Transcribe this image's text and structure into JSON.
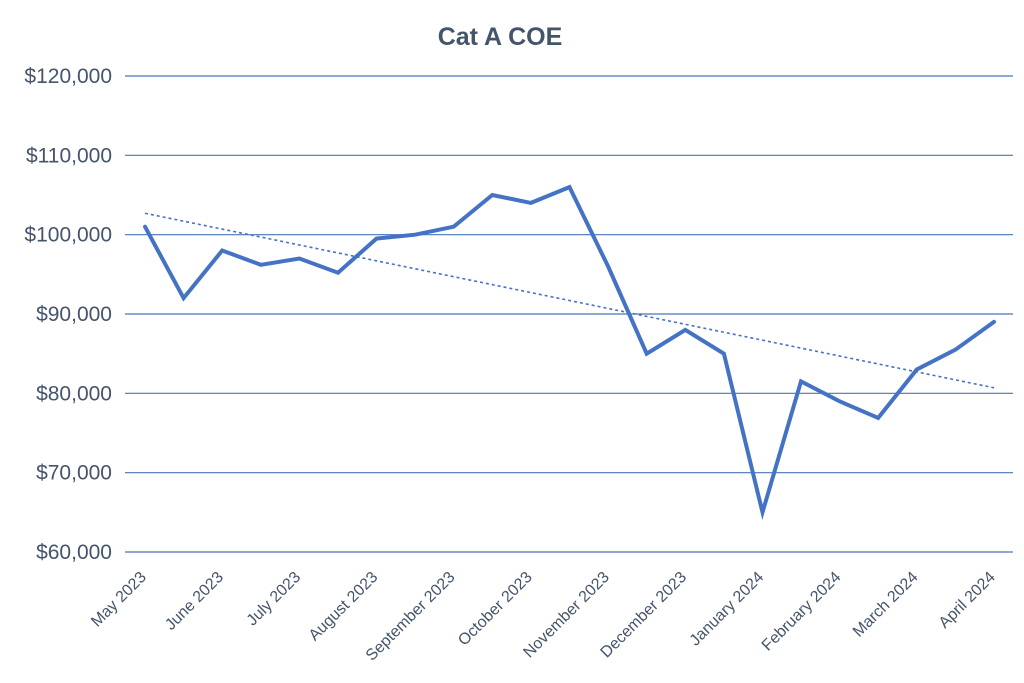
{
  "chart_data": {
    "type": "line",
    "title": "Cat A COE",
    "xlabel": "",
    "ylabel": "",
    "ylim": [
      60000,
      120000
    ],
    "y_ticks": [
      60000,
      70000,
      80000,
      90000,
      100000,
      110000,
      120000
    ],
    "y_tick_labels": [
      "$60,000",
      "$70,000",
      "$80,000",
      "$90,000",
      "$100,000",
      "$110,000",
      "$120,000"
    ],
    "x_tick_labels": [
      "May 2023",
      "June 2023",
      "July 2023",
      "August 2023",
      "September 2023",
      "October 2023",
      "November 2023",
      "December 2023",
      "January 2024",
      "February 2024",
      "March 2024",
      "April 2024"
    ],
    "grid": true,
    "series": [
      {
        "name": "Cat A COE",
        "color": "#4472c4",
        "values": [
          101000,
          92000,
          98000,
          96200,
          97000,
          95200,
          99500,
          100000,
          101000,
          105000,
          104000,
          106000,
          96000,
          85000,
          88000,
          85000,
          65000,
          81500,
          79000,
          76900,
          83000,
          85500,
          89000
        ]
      }
    ],
    "trendline": {
      "style": "dotted",
      "color": "#4472c4",
      "start_value": 102700,
      "end_value": 80700
    }
  }
}
